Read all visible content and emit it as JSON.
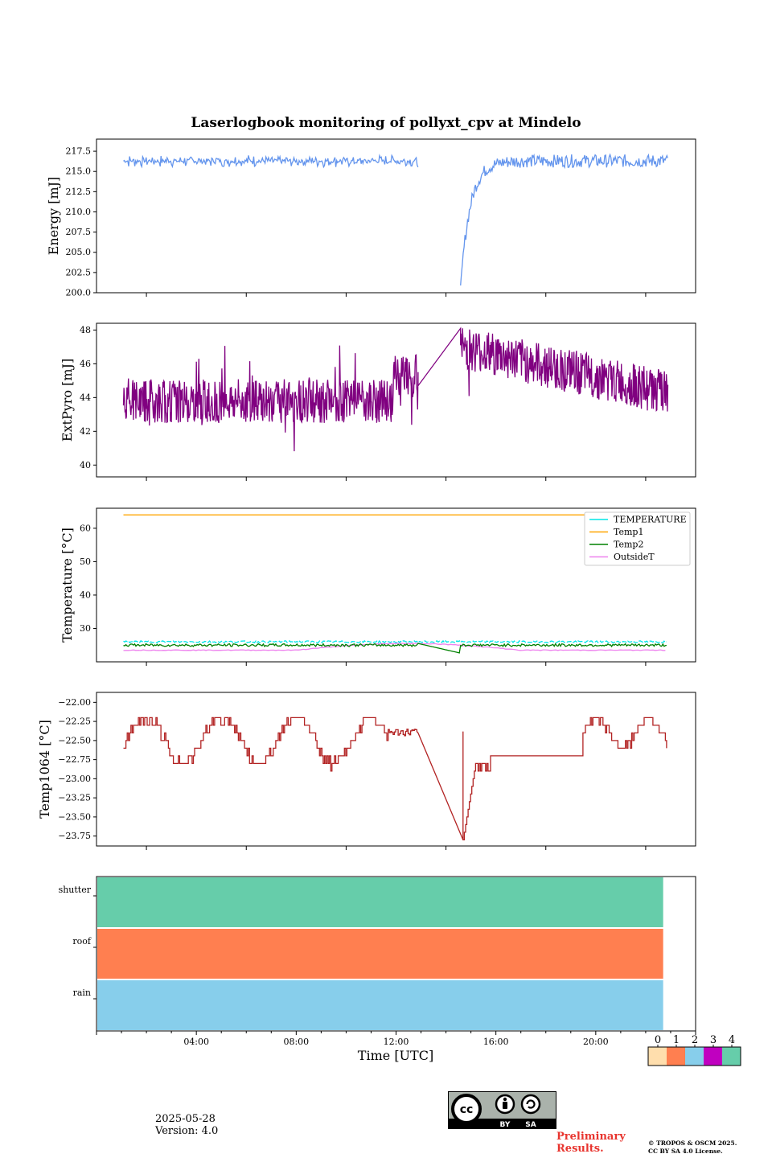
{
  "title": "Laserlogbook monitoring of pollyxt_cpv at Mindelo",
  "xlabel": "Time [UTC]",
  "xticks": [
    "04:00",
    "08:00",
    "12:00",
    "16:00",
    "20:00"
  ],
  "date": "2025-05-28",
  "version": "Version: 4.0",
  "preliminary": [
    "Preliminary",
    "Results."
  ],
  "copyright": [
    "© TROPOS & OSCM 2025.",
    "CC BY SA 4.0 License."
  ],
  "cc_badge": {
    "by": "BY",
    "sa": "SA"
  },
  "status_colorbar": {
    "labels": [
      "0",
      "1",
      "2",
      "3",
      "4"
    ],
    "colors": [
      "#ffdead",
      "#ff7f50",
      "#87ceeb",
      "#c000c0",
      "#66cdaa"
    ]
  },
  "chart_data": [
    {
      "type": "line",
      "ylabel": "Energy [mJ]",
      "ylim": [
        200,
        219
      ],
      "yticks": [
        "200.0",
        "202.5",
        "205.0",
        "207.5",
        "210.0",
        "212.5",
        "215.0",
        "217.5"
      ],
      "color": "#6495ed",
      "segments": [
        {
          "from": 1.1,
          "to": 12.9,
          "level": 216.3,
          "noise": 0.8
        },
        {
          "from": 14.6,
          "to": 22.9,
          "recovery": [
            200.8,
            216.3
          ]
        }
      ]
    },
    {
      "type": "line",
      "ylabel": "ExtPyro [mJ]",
      "ylim": [
        39.3,
        48.4
      ],
      "yticks": [
        "40",
        "42",
        "44",
        "46",
        "48"
      ],
      "color": "#800080",
      "segments": [
        {
          "from": 1.1,
          "to": 12.9,
          "level": 43.8,
          "noise": 1.3
        },
        {
          "from": 12.9,
          "to": 14.6,
          "line": [
            44.7,
            48.1
          ]
        },
        {
          "from": 14.6,
          "to": 22.9,
          "level": 45.5,
          "noise": 1.3
        }
      ]
    },
    {
      "type": "line",
      "ylabel": "Temperature [°C]",
      "ylim": [
        20,
        66
      ],
      "yticks": [
        "30",
        "40",
        "50",
        "60"
      ],
      "series": [
        {
          "name": "TEMPERATURE",
          "color": "#00e5e5",
          "value": 26
        },
        {
          "name": "Temp1",
          "color": "#ffa500",
          "value": 64
        },
        {
          "name": "Temp2",
          "color": "#008000",
          "value": 25,
          "dip": [
            14.6,
            22.8
          ]
        },
        {
          "name": "OutsideT",
          "color": "#ee82ee",
          "value": 23.5,
          "rise": [
            12.5,
            25.5
          ]
        }
      ]
    },
    {
      "type": "line",
      "ylabel": "Temp1064 [°C]",
      "ylim": [
        -23.88,
        -21.87
      ],
      "yticks": [
        "−22.00",
        "−22.25",
        "−22.50",
        "−22.75",
        "−23.00",
        "−23.25",
        "−23.50",
        "−23.75"
      ],
      "color": "#b22222",
      "segments": [
        {
          "from": 1.1,
          "to": 12.9,
          "level": -22.5,
          "oscillation": 0.3
        },
        {
          "from": 12.9,
          "to": 14.7,
          "line": [
            -22.4,
            -23.8
          ]
        },
        {
          "from": 14.7,
          "to": 22.9,
          "level": -22.7
        }
      ]
    },
    {
      "type": "bar",
      "categories": [
        "shutter",
        "roof",
        "rain"
      ],
      "colors": [
        "#66cdaa",
        "#ff7f50",
        "#87ceeb"
      ],
      "end_hour": 22.7,
      "xlim": [
        0,
        24
      ]
    }
  ]
}
